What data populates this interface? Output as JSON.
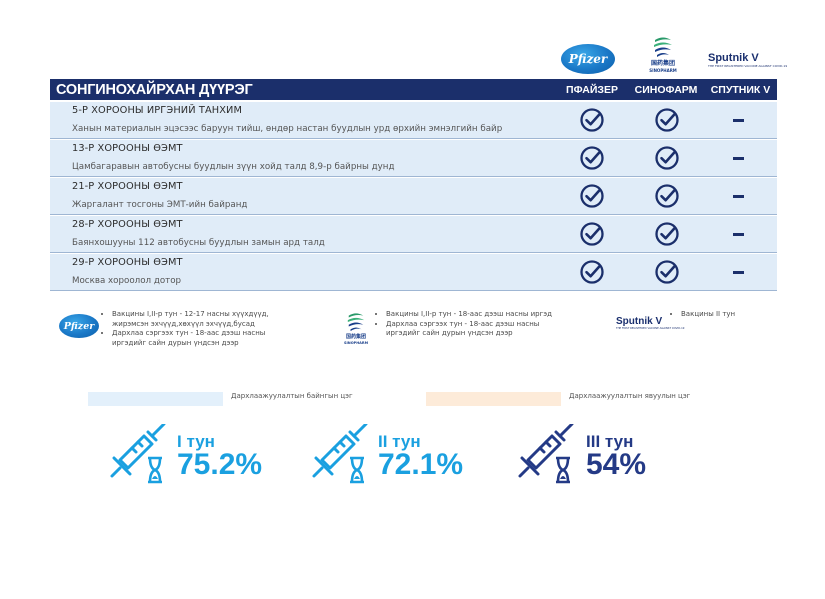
{
  "vaccines": {
    "pfizer_logo_text": "Pfizer",
    "sino_logo_text": "国药集团",
    "sino_logo_sub": "SINOPHARM",
    "sputnik_logo_text": "Sputnik V",
    "sputnik_logo_sub": "THE FIRST REGISTERED VACCINE AGAINST COVID-19"
  },
  "header": {
    "title": "СОНГИНОХАЙРХАН ДҮҮРЭГ",
    "col_pfizer": "ПФАЙЗЕР",
    "col_sino": "СИНОФАРМ",
    "col_sputnik": "СПУТНИК V"
  },
  "rows": [
    {
      "title": "5-Р ХОРООНЫ ИРГЭНИЙ ТАНХИМ",
      "address": "Ханын материалын эцэсээс баруун тийш, өндөр настан буудлын урд өрхийн эмнэлгийн байр",
      "pfizer": true,
      "sino": true,
      "sputnik": false
    },
    {
      "title": "13-Р ХОРООНЫ ӨЭМТ",
      "address": "Цамбагаравын автобусны буудлын зүүн хойд талд 8,9-р байрны дунд",
      "pfizer": true,
      "sino": true,
      "sputnik": false
    },
    {
      "title": "21-Р ХОРООНЫ ӨЭМТ",
      "address": "Жаргалант тосгоны ЭМТ-ийн байранд",
      "pfizer": true,
      "sino": true,
      "sputnik": false
    },
    {
      "title": "28-Р ХОРООНЫ ӨЭМТ",
      "address": "Баянхошууны 112 автобусны буудлын замын ард талд",
      "pfizer": true,
      "sino": true,
      "sputnik": false
    },
    {
      "title": "29-Р ХОРООНЫ ӨЭМТ",
      "address": "Москва хороолол дотор",
      "pfizer": true,
      "sino": true,
      "sputnik": false
    }
  ],
  "legend": {
    "pfizer_items": [
      "Вакцины I,II-р тун - 12-17 насны хүүхдүүд, жирэмсэн эхчүүд,хөхүүл эхчүүд,бусад",
      "Дархлаа сэргээх тун - 18-аас дээш насны иргэдийг сайн дурын үндсэн дээр"
    ],
    "sino_items": [
      "Вакцины I,II-р тун - 18-аас дээш насны иргэд",
      "Дархлаа сэргээх тун - 18-аас дээш насны иргэдийг сайн дурын үндсэн дээр"
    ],
    "sputnik_items": [
      "Вакцины II тун"
    ]
  },
  "sites": {
    "fixed_label": "Дархлаажуулалтын байнгын цэг",
    "mobile_label": "Дархлаажуулалтын явуулын цэг",
    "fixed_color": "#e3f0fb",
    "mobile_color": "#fdebd9"
  },
  "stats": [
    {
      "label": "I тун",
      "value": "75.2%",
      "color": "#1aa0e0"
    },
    {
      "label": "II тун",
      "value": "72.1%",
      "color": "#1aa0e0"
    },
    {
      "label": "III тун",
      "value": "54%",
      "color": "#243a86"
    }
  ]
}
